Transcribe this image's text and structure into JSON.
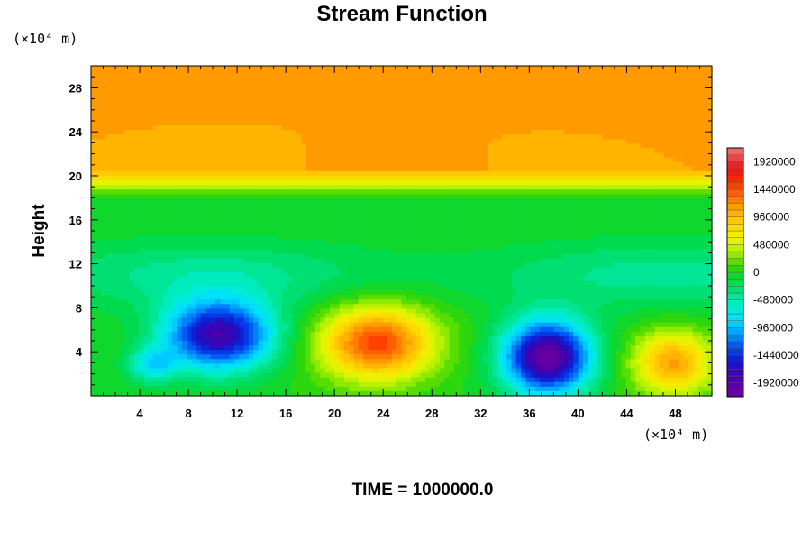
{
  "chart_data": {
    "type": "heatmap",
    "title": "Stream Function",
    "ylabel": "Height",
    "x_unit": "(×10⁴ m)",
    "y_unit": "(×10⁴ m)",
    "xlim": [
      0,
      51
    ],
    "ylim": [
      0,
      30
    ],
    "x_ticks": [
      4,
      8,
      12,
      16,
      20,
      24,
      28,
      32,
      36,
      40,
      44,
      48
    ],
    "y_ticks": [
      4,
      8,
      12,
      16,
      20,
      24,
      28
    ],
    "colorbar": {
      "range": [
        -2160000,
        2160000
      ],
      "interval": 120000,
      "tick_labels": [
        "1920000",
        "1440000",
        "960000",
        "480000",
        "0",
        "-480000",
        "-960000",
        "-1440000",
        "-1920000"
      ],
      "tick_values": [
        1920000,
        1440000,
        960000,
        480000,
        0,
        -480000,
        -960000,
        -1440000,
        -1920000
      ]
    },
    "background_value_below_y20": 0,
    "background_value_above_y20": 1080000,
    "features": [
      {
        "kind": "cyclonic",
        "x": 10.5,
        "y": 5.5,
        "value": -1800000
      },
      {
        "kind": "anticyclonic",
        "x": 23.5,
        "y": 4.8,
        "value": 1500000
      },
      {
        "kind": "cyclonic",
        "x": 37.5,
        "y": 3.5,
        "value": -2100000
      },
      {
        "kind": "anticyclonic",
        "x": 47.8,
        "y": 3.0,
        "value": 1100000
      }
    ],
    "grid": false,
    "annotation": "TIME = 1000000.0"
  }
}
